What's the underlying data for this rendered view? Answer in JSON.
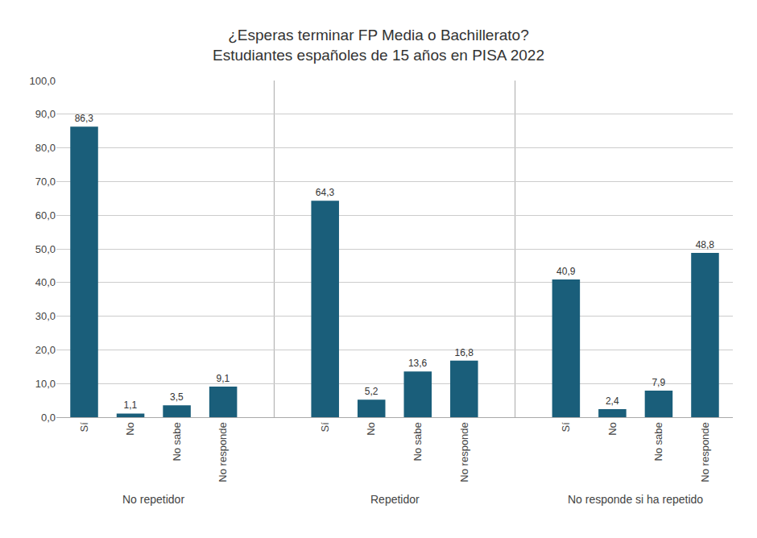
{
  "chart_data": {
    "type": "bar",
    "title": "¿Esperas terminar FP Media o Bachillerato?",
    "subtitle": "Estudiantes españoles de 15 años en PISA 2022",
    "categories": [
      "Sí",
      "No",
      "No sabe",
      "No responde",
      "Sí",
      "No",
      "No sabe",
      "No responde",
      "Sí",
      "No",
      "No sabe",
      "No responde"
    ],
    "values": [
      86.3,
      1.1,
      3.5,
      9.1,
      64.3,
      5.2,
      13.6,
      16.8,
      40.9,
      2.4,
      7.9,
      48.8
    ],
    "value_labels": [
      "86,3",
      "1,1",
      "3,5",
      "9,1",
      "64,3",
      "5,2",
      "13,6",
      "16,8",
      "40,9",
      "2,4",
      "7,9",
      "48,8"
    ],
    "annotations": [
      "No repetidor",
      "Repetidor",
      "No responde si ha repetido"
    ],
    "color": "#1a5e7a",
    "ylim": [
      0,
      100
    ],
    "yticks": [
      {
        "value": 0,
        "label": "0,0"
      },
      {
        "value": 10,
        "label": "10,0"
      },
      {
        "value": 20,
        "label": "20,0"
      },
      {
        "value": 30,
        "label": "30,0"
      },
      {
        "value": 40,
        "label": "40,0"
      },
      {
        "value": 50,
        "label": "50,0"
      },
      {
        "value": 60,
        "label": "60,0"
      },
      {
        "value": 70,
        "label": "70,0"
      },
      {
        "value": 80,
        "label": "80,0"
      },
      {
        "value": 90,
        "label": "90,0"
      },
      {
        "value": 100,
        "label": "100,0"
      }
    ],
    "grid": true,
    "data_labels": true
  }
}
